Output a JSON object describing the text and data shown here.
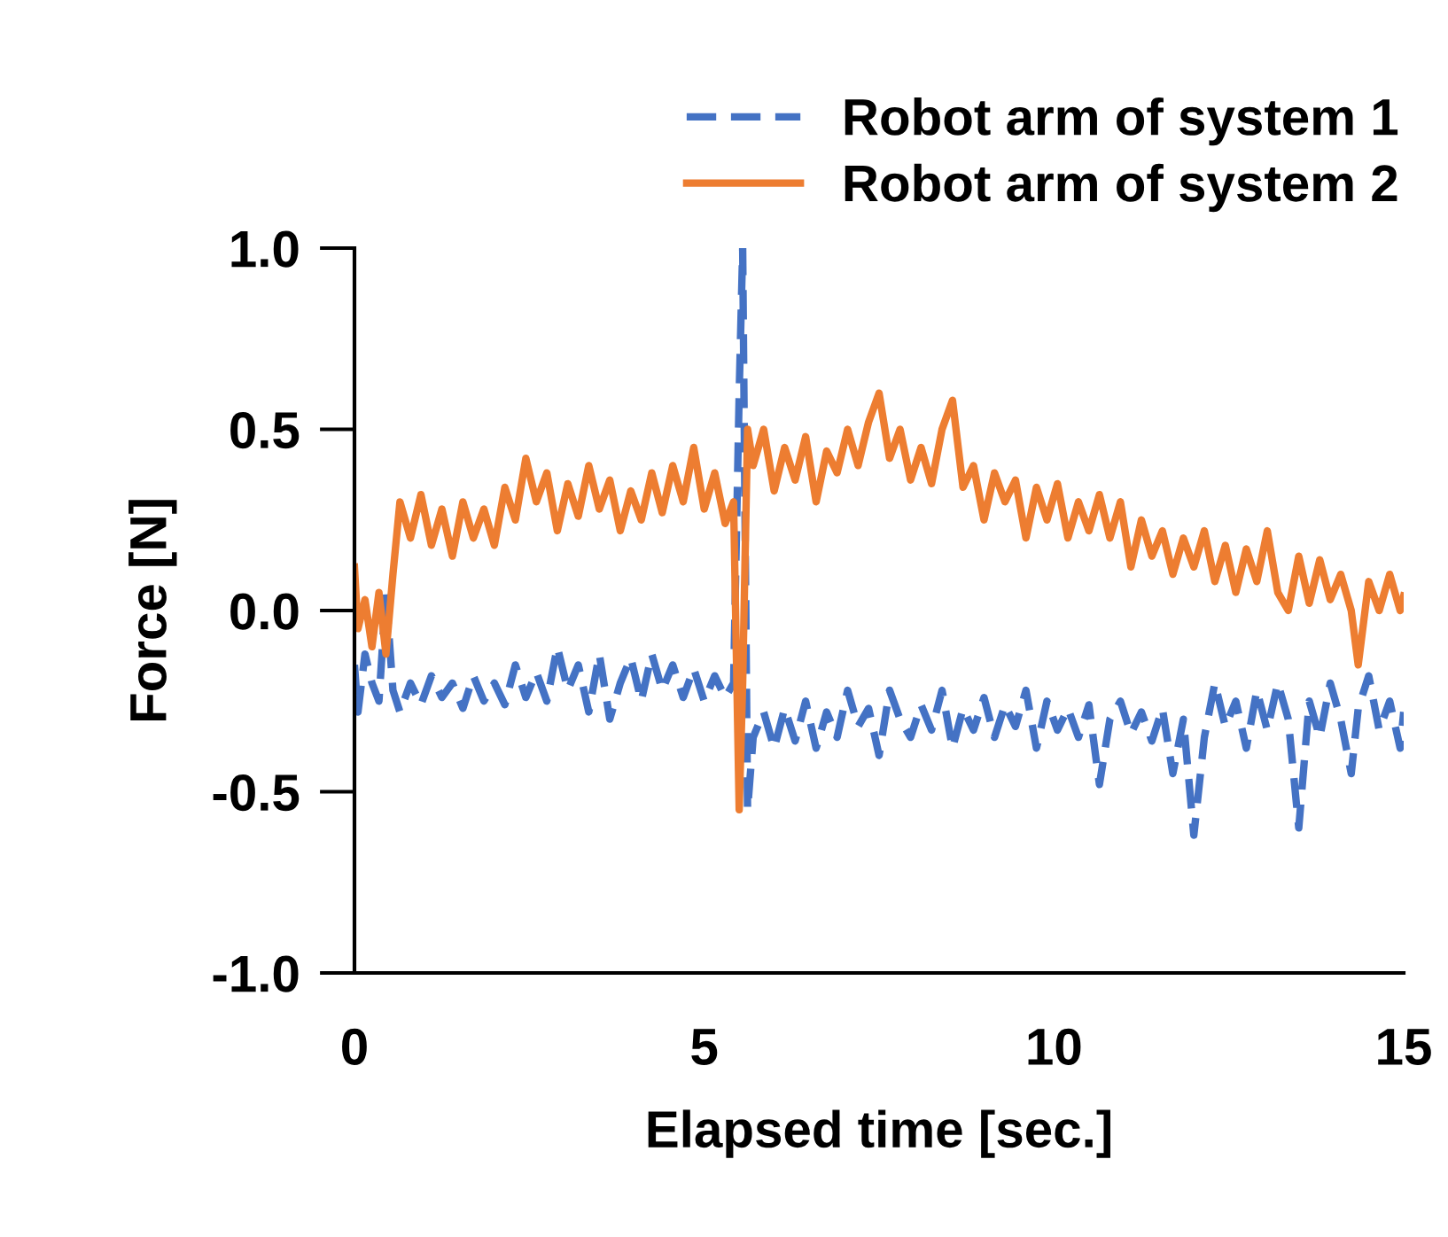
{
  "chart_data": {
    "type": "line",
    "xlabel": "Elapsed time [sec.]",
    "ylabel": "Force [N]",
    "x": [
      0,
      0.05,
      0.15,
      0.25,
      0.35,
      0.45,
      0.55,
      0.65,
      0.8,
      0.95,
      1.1,
      1.25,
      1.4,
      1.55,
      1.7,
      1.85,
      2.0,
      2.15,
      2.3,
      2.45,
      2.6,
      2.75,
      2.9,
      3.05,
      3.2,
      3.35,
      3.5,
      3.65,
      3.8,
      3.95,
      4.1,
      4.25,
      4.4,
      4.55,
      4.7,
      4.85,
      5.0,
      5.15,
      5.3,
      5.42,
      5.5,
      5.55,
      5.62,
      5.7,
      5.85,
      6.0,
      6.15,
      6.3,
      6.45,
      6.6,
      6.75,
      6.9,
      7.05,
      7.2,
      7.35,
      7.5,
      7.65,
      7.8,
      7.95,
      8.1,
      8.25,
      8.4,
      8.55,
      8.7,
      8.85,
      9.0,
      9.15,
      9.3,
      9.45,
      9.6,
      9.75,
      9.9,
      10.05,
      10.2,
      10.35,
      10.5,
      10.65,
      10.8,
      10.95,
      11.1,
      11.25,
      11.4,
      11.55,
      11.7,
      11.85,
      12.0,
      12.15,
      12.3,
      12.45,
      12.6,
      12.75,
      12.9,
      13.05,
      13.2,
      13.35,
      13.5,
      13.65,
      13.8,
      13.95,
      14.1,
      14.25,
      14.35,
      14.5,
      14.65,
      14.8,
      14.95,
      15.0
    ],
    "series": [
      {
        "name": "Robot arm of system 1",
        "color": "#4472c4",
        "line_style": "dashed",
        "values": [
          -0.15,
          -0.28,
          -0.12,
          -0.2,
          -0.25,
          0.05,
          -0.22,
          -0.28,
          -0.2,
          -0.26,
          -0.18,
          -0.24,
          -0.2,
          -0.27,
          -0.18,
          -0.25,
          -0.2,
          -0.26,
          -0.15,
          -0.24,
          -0.17,
          -0.25,
          -0.1,
          -0.22,
          -0.15,
          -0.28,
          -0.12,
          -0.3,
          -0.2,
          -0.13,
          -0.25,
          -0.12,
          -0.22,
          -0.15,
          -0.24,
          -0.16,
          -0.25,
          -0.18,
          -0.24,
          -0.2,
          0.6,
          1.0,
          -0.55,
          -0.35,
          -0.28,
          -0.38,
          -0.27,
          -0.36,
          -0.25,
          -0.38,
          -0.28,
          -0.35,
          -0.22,
          -0.32,
          -0.27,
          -0.4,
          -0.22,
          -0.3,
          -0.35,
          -0.26,
          -0.33,
          -0.22,
          -0.38,
          -0.27,
          -0.33,
          -0.24,
          -0.35,
          -0.26,
          -0.32,
          -0.22,
          -0.38,
          -0.25,
          -0.33,
          -0.27,
          -0.35,
          -0.26,
          -0.48,
          -0.3,
          -0.25,
          -0.34,
          -0.28,
          -0.36,
          -0.27,
          -0.45,
          -0.3,
          -0.62,
          -0.35,
          -0.2,
          -0.32,
          -0.25,
          -0.38,
          -0.22,
          -0.33,
          -0.2,
          -0.3,
          -0.6,
          -0.25,
          -0.35,
          -0.2,
          -0.3,
          -0.45,
          -0.27,
          -0.18,
          -0.33,
          -0.25,
          -0.38,
          -0.28
        ]
      },
      {
        "name": "Robot arm of system 2",
        "color": "#ed7d31",
        "line_style": "solid",
        "values": [
          0.12,
          -0.05,
          0.03,
          -0.1,
          0.05,
          -0.12,
          0.1,
          0.3,
          0.2,
          0.32,
          0.18,
          0.28,
          0.15,
          0.3,
          0.2,
          0.28,
          0.18,
          0.34,
          0.25,
          0.42,
          0.3,
          0.38,
          0.22,
          0.35,
          0.26,
          0.4,
          0.28,
          0.36,
          0.22,
          0.33,
          0.25,
          0.38,
          0.27,
          0.4,
          0.3,
          0.45,
          0.28,
          0.38,
          0.24,
          0.3,
          -0.55,
          -0.2,
          0.5,
          0.4,
          0.5,
          0.33,
          0.45,
          0.36,
          0.48,
          0.3,
          0.44,
          0.38,
          0.5,
          0.4,
          0.52,
          0.6,
          0.42,
          0.5,
          0.36,
          0.45,
          0.35,
          0.5,
          0.58,
          0.34,
          0.4,
          0.25,
          0.38,
          0.3,
          0.36,
          0.2,
          0.34,
          0.25,
          0.35,
          0.2,
          0.3,
          0.22,
          0.32,
          0.2,
          0.3,
          0.12,
          0.25,
          0.15,
          0.22,
          0.1,
          0.2,
          0.12,
          0.22,
          0.08,
          0.18,
          0.05,
          0.17,
          0.08,
          0.22,
          0.05,
          0.0,
          0.15,
          0.02,
          0.14,
          0.03,
          0.1,
          0.0,
          -0.15,
          0.08,
          0.0,
          0.1,
          0.0,
          0.04
        ]
      }
    ],
    "xlim": [
      0,
      15
    ],
    "xticks": [
      0,
      5,
      10,
      15
    ],
    "ylim": [
      -1.0,
      1.0
    ],
    "yticks": [
      {
        "value": -1,
        "label": "-1.0"
      },
      -0.5,
      {
        "value": 0,
        "label": "0.0"
      },
      0.5,
      {
        "value": 1,
        "label": "1.0"
      }
    ],
    "grid": false,
    "legend": "top right",
    "marker": "none"
  }
}
